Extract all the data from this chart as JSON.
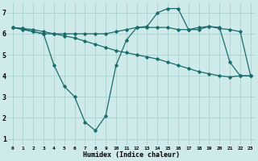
{
  "xlabel": "Humidex (Indice chaleur)",
  "bg_color": "#ceeaea",
  "grid_color": "#b0d4d4",
  "line_color": "#1a6b6b",
  "xlim": [
    -0.5,
    23.5
  ],
  "ylim": [
    0.7,
    7.5
  ],
  "xticks": [
    0,
    1,
    2,
    3,
    4,
    5,
    6,
    7,
    8,
    9,
    10,
    11,
    12,
    13,
    14,
    15,
    16,
    17,
    18,
    19,
    20,
    21,
    22,
    23
  ],
  "yticks": [
    1,
    2,
    3,
    4,
    5,
    6,
    7
  ],
  "line1_x": [
    0,
    1,
    2,
    3,
    4,
    5,
    6,
    7,
    8,
    9,
    10,
    11,
    12,
    13,
    14,
    15,
    16,
    17,
    18,
    19,
    20,
    21,
    22,
    23
  ],
  "line1_y": [
    6.3,
    6.25,
    6.2,
    6.1,
    6.0,
    5.9,
    5.8,
    5.65,
    5.5,
    5.35,
    5.2,
    5.1,
    5.0,
    4.9,
    4.8,
    4.65,
    4.5,
    4.35,
    4.2,
    4.1,
    4.0,
    3.95,
    4.0,
    4.0
  ],
  "line2_x": [
    0,
    1,
    2,
    3,
    4,
    5,
    6,
    7,
    8,
    9,
    10,
    11,
    12,
    13,
    14,
    15,
    16,
    17,
    18,
    19,
    20,
    21,
    22,
    23
  ],
  "line2_y": [
    6.3,
    6.2,
    6.1,
    6.0,
    4.5,
    3.5,
    3.0,
    1.8,
    1.4,
    2.1,
    4.5,
    5.7,
    6.3,
    6.35,
    7.0,
    7.2,
    7.2,
    6.2,
    6.2,
    6.35,
    6.3,
    4.65,
    4.0,
    4.0
  ],
  "line3_x": [
    0,
    1,
    2,
    3,
    4,
    5,
    6,
    7,
    8,
    9,
    10,
    11,
    12,
    13,
    14,
    15,
    16,
    17,
    18,
    19,
    20,
    21,
    22,
    23
  ],
  "line3_y": [
    6.3,
    6.25,
    6.1,
    6.0,
    6.0,
    6.0,
    6.0,
    6.0,
    6.0,
    6.0,
    6.1,
    6.2,
    6.3,
    6.3,
    6.3,
    6.3,
    6.2,
    6.2,
    6.3,
    6.35,
    6.25,
    6.2,
    6.1,
    4.0
  ]
}
